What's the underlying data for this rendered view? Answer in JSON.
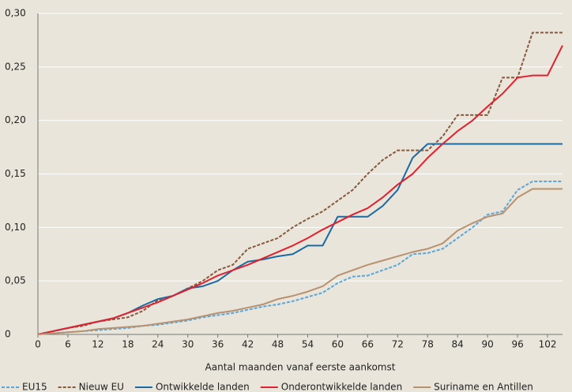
{
  "chart_data": {
    "type": "line",
    "x_label": "Aantal maanden vanaf eerste aankomst",
    "x": [
      0,
      3,
      6,
      9,
      12,
      15,
      18,
      21,
      24,
      27,
      30,
      33,
      36,
      39,
      42,
      45,
      48,
      51,
      54,
      57,
      60,
      63,
      66,
      69,
      72,
      75,
      78,
      81,
      84,
      87,
      90,
      93,
      96,
      99,
      102,
      105
    ],
    "xlim": [
      0,
      105
    ],
    "xticks": [
      0,
      6,
      12,
      18,
      24,
      30,
      36,
      42,
      48,
      54,
      60,
      66,
      72,
      78,
      84,
      90,
      96,
      102
    ],
    "ylim": [
      0,
      0.3
    ],
    "yticks": [
      0,
      {
        "value": 0.05,
        "label": "0,05"
      },
      {
        "value": 0.1,
        "label": "0,10"
      },
      {
        "value": 0.15,
        "label": "0,15"
      },
      {
        "value": 0.2,
        "label": "0,20"
      },
      {
        "value": 0.25,
        "label": "0,25"
      },
      {
        "value": 0.3,
        "label": "0,30"
      }
    ],
    "grid": true,
    "legend": "bottom",
    "series": [
      {
        "name": "EU15",
        "color": "#5aa6d9",
        "style": "dashed",
        "values": [
          0,
          0.001,
          0.002,
          0.003,
          0.004,
          0.005,
          0.006,
          0.008,
          0.009,
          0.011,
          0.013,
          0.016,
          0.018,
          0.02,
          0.023,
          0.026,
          0.028,
          0.031,
          0.035,
          0.039,
          0.048,
          0.054,
          0.055,
          0.06,
          0.065,
          0.075,
          0.076,
          0.08,
          0.09,
          0.1,
          0.112,
          0.115,
          0.135,
          0.143,
          0.143,
          0.143
        ]
      },
      {
        "name": "Nieuw EU",
        "color": "#87583b",
        "style": "dashed",
        "values": [
          0,
          0.003,
          0.006,
          0.008,
          0.012,
          0.014,
          0.016,
          0.022,
          0.032,
          0.036,
          0.043,
          0.05,
          0.06,
          0.065,
          0.08,
          0.085,
          0.09,
          0.1,
          0.108,
          0.115,
          0.125,
          0.135,
          0.15,
          0.163,
          0.172,
          0.172,
          0.172,
          0.185,
          0.205,
          0.205,
          0.205,
          0.24,
          0.24,
          0.282,
          0.282,
          0.282
        ]
      },
      {
        "name": "Ontwikkelde landen",
        "color": "#1c6aa3",
        "style": "solid",
        "values": [
          0,
          0.003,
          0.006,
          0.009,
          0.012,
          0.015,
          0.02,
          0.027,
          0.033,
          0.036,
          0.043,
          0.045,
          0.05,
          0.06,
          0.068,
          0.07,
          0.073,
          0.075,
          0.083,
          0.083,
          0.11,
          0.11,
          0.11,
          0.12,
          0.135,
          0.165,
          0.178,
          0.178,
          0.178,
          0.178,
          0.178,
          0.178,
          0.178,
          0.178,
          0.178,
          0.178
        ]
      },
      {
        "name": "Onderontwikkelde landen",
        "color": "#e2202e",
        "style": "solid",
        "values": [
          0,
          0.003,
          0.006,
          0.009,
          0.012,
          0.015,
          0.02,
          0.025,
          0.03,
          0.036,
          0.042,
          0.048,
          0.055,
          0.06,
          0.065,
          0.071,
          0.077,
          0.083,
          0.09,
          0.098,
          0.105,
          0.112,
          0.118,
          0.128,
          0.14,
          0.15,
          0.165,
          0.178,
          0.19,
          0.2,
          0.213,
          0.225,
          0.24,
          0.242,
          0.242,
          0.27
        ]
      },
      {
        "name": "Suriname en Antillen",
        "color": "#b8916f",
        "style": "solid",
        "values": [
          0,
          0.001,
          0.002,
          0.003,
          0.005,
          0.006,
          0.007,
          0.008,
          0.01,
          0.012,
          0.014,
          0.017,
          0.02,
          0.022,
          0.025,
          0.028,
          0.033,
          0.036,
          0.04,
          0.045,
          0.055,
          0.06,
          0.065,
          0.069,
          0.073,
          0.077,
          0.08,
          0.085,
          0.097,
          0.104,
          0.11,
          0.113,
          0.128,
          0.136,
          0.136,
          0.136
        ]
      }
    ]
  }
}
